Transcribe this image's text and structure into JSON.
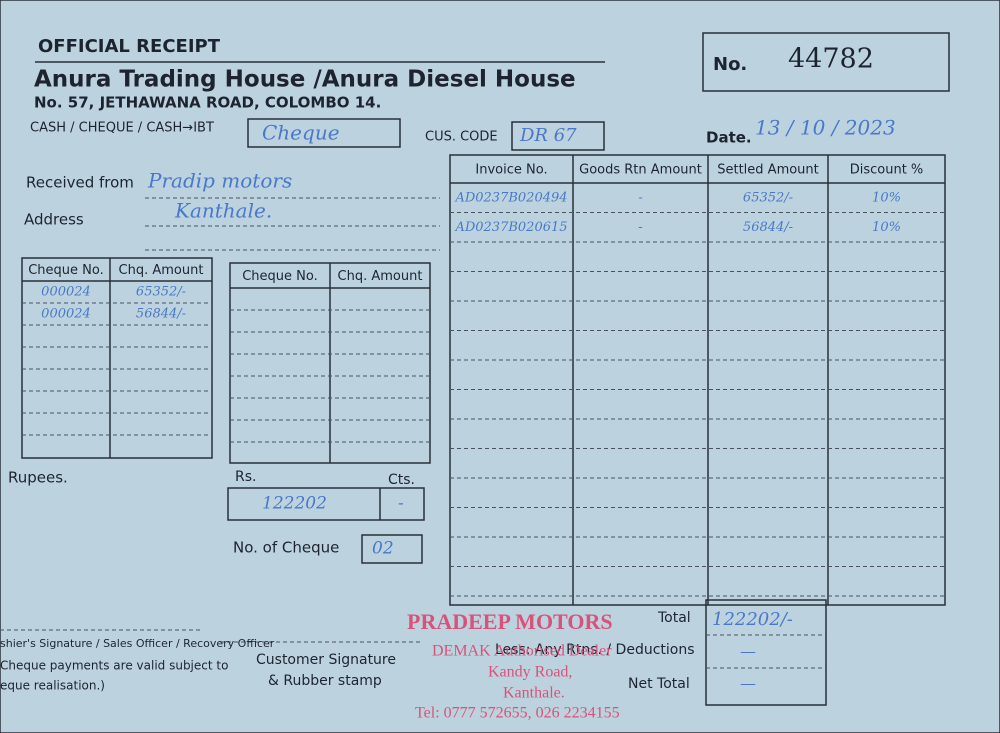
{
  "header": {
    "title": "OFFICIAL RECEIPT",
    "company": "Anura Trading House /Anura Diesel House",
    "address": "No. 57, JETHAWANA ROAD, COLOMBO 14.",
    "receipt_no_label": "No.",
    "receipt_no": "44782"
  },
  "payment": {
    "method_label": "CASH / CHEQUE / CASH→IBT",
    "method_value": "Cheque",
    "cus_code_label": "CUS. CODE",
    "cus_code": "DR 67",
    "date_label": "Date.",
    "date": "13 / 10 / 2023"
  },
  "customer": {
    "received_from_label": "Received from",
    "received_from": "Pradip motors",
    "address_label": "Address",
    "address": "Kanthale."
  },
  "cheques_left": {
    "headers": [
      "Cheque No.",
      "Chq. Amount"
    ],
    "rows": [
      [
        "000024",
        "65352/-"
      ],
      [
        "000024",
        "56844/-"
      ]
    ]
  },
  "cheques_right": {
    "headers": [
      "Cheque No.",
      "Chq. Amount"
    ],
    "rows": []
  },
  "amount": {
    "rupees_label": "Rupees.",
    "rs_label": "Rs.",
    "cts_label": "Cts.",
    "rs_value": "122202",
    "cts_value": "-",
    "cheque_count_label": "No. of Cheque",
    "cheque_count": "02"
  },
  "invoices": {
    "headers": [
      "Invoice No.",
      "Goods Rtn Amount",
      "Settled Amount",
      "Discount %"
    ],
    "rows": [
      [
        "AD0237B020494",
        "-",
        "65352/-",
        "10%"
      ],
      [
        "AD0237B020615",
        "-",
        "56844/-",
        "10%"
      ]
    ]
  },
  "totals": {
    "total_label": "Total",
    "total": "122202/-",
    "deductions_label": "Less: Any Rtns. / Deductions",
    "deductions": "—",
    "net_total_label": "Net Total",
    "net_total": "—"
  },
  "footer": {
    "signature_label": "shier's Signature / Sales Officer / Recovery Officer",
    "note_1": "Cheque payments are valid subject to",
    "note_2": "eque realisation.)",
    "customer_signature": "Customer Signature",
    "rubber_stamp": "& Rubber stamp"
  },
  "stamp": {
    "name": "PRADEEP MOTORS",
    "dealer": "DEMAK Authorised Dealer",
    "road": "Kandy Road,",
    "town": "Kanthale.",
    "tel": "Tel: 0777 572655, 026 2234155"
  }
}
